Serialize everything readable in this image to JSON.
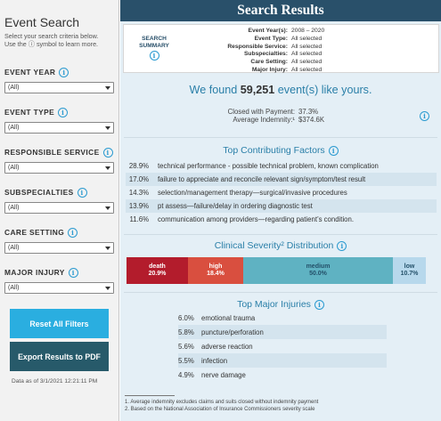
{
  "sidebar": {
    "title": "Event Search",
    "subtitle_line1": "Select your search criteria below.",
    "subtitle_line2": "Use the ⓘ symbol to learn more.",
    "filters": [
      {
        "label": "EVENT YEAR",
        "value": "(All)"
      },
      {
        "label": "EVENT TYPE",
        "value": "(All)"
      },
      {
        "label": "RESPONSIBLE SERVICE",
        "value": "(All)"
      },
      {
        "label": "SUBSPECIALTIES",
        "value": "(All)"
      },
      {
        "label": "CARE SETTING",
        "value": "(All)"
      },
      {
        "label": "MAJOR INJURY",
        "value": "(All)"
      }
    ],
    "reset_label": "Reset All Filters",
    "export_label": "Export Results to PDF",
    "data_as_of": "Data as of 3/1/2021 12:21:11 PM"
  },
  "header": {
    "title": "Search Results"
  },
  "summary": {
    "label_line1": "SEARCH",
    "label_line2": "SUMMARY",
    "rows": [
      {
        "key": "Event Year(s):",
        "value": "2008 – 2020"
      },
      {
        "key": "Event Type:",
        "value": "All selected"
      },
      {
        "key": "Responsible Service:",
        "value": "All selected"
      },
      {
        "key": "Subspecialties:",
        "value": "All selected"
      },
      {
        "key": "Care Setting:",
        "value": "All selected"
      },
      {
        "key": "Major Injury:",
        "value": "All selected"
      }
    ]
  },
  "results": {
    "found_prefix": "We found ",
    "found_count": "59,251",
    "found_suffix": " event(s) like yours.",
    "closed_key": "Closed with Payment:",
    "closed_val": "37.3%",
    "indemnity_key": "Average Indemnity:¹",
    "indemnity_val": "$374.6K"
  },
  "factors": {
    "title": "Top Contributing Factors",
    "items": [
      {
        "pct": "28.9%",
        "text": "technical performance - possible technical problem, known complication"
      },
      {
        "pct": "17.0%",
        "text": "failure to appreciate and reconcile relevant sign/symptom/test result"
      },
      {
        "pct": "14.3%",
        "text": "selection/management therapy—surgical/invasive procedures"
      },
      {
        "pct": "13.9%",
        "text": "pt assess—failure/delay in ordering diagnostic test"
      },
      {
        "pct": "11.6%",
        "text": "communication among providers—regarding patient’s condition."
      }
    ]
  },
  "severity": {
    "title": "Clinical Severity² Distribution",
    "segments": [
      {
        "name": "death",
        "value": "20.9%",
        "color": "#b31c2c"
      },
      {
        "name": "high",
        "value": "18.4%",
        "color": "#d94f3f"
      },
      {
        "name": "medium",
        "value": "50.0%",
        "color": "#5fb2c2"
      },
      {
        "name": "low",
        "value": "10.7%",
        "color": "#b7d8ec"
      }
    ]
  },
  "injuries": {
    "title": "Top Major Injuries",
    "items": [
      {
        "pct": "6.0%",
        "text": "emotional trauma"
      },
      {
        "pct": "5.8%",
        "text": "puncture/perforation"
      },
      {
        "pct": "5.6%",
        "text": "adverse reaction"
      },
      {
        "pct": "5.5%",
        "text": "infection"
      },
      {
        "pct": "4.9%",
        "text": "nerve damage"
      }
    ]
  },
  "footnotes": {
    "fn1": "1. Average indemnity excludes claims and suits closed without indemnity payment",
    "fn2": "2. Based on the National Association of Insurance Commissioners severity scale"
  },
  "colors": {
    "accent": "#2aaee0",
    "header": "#29506a",
    "export": "#275a6a",
    "info": "#2a9ad0"
  }
}
